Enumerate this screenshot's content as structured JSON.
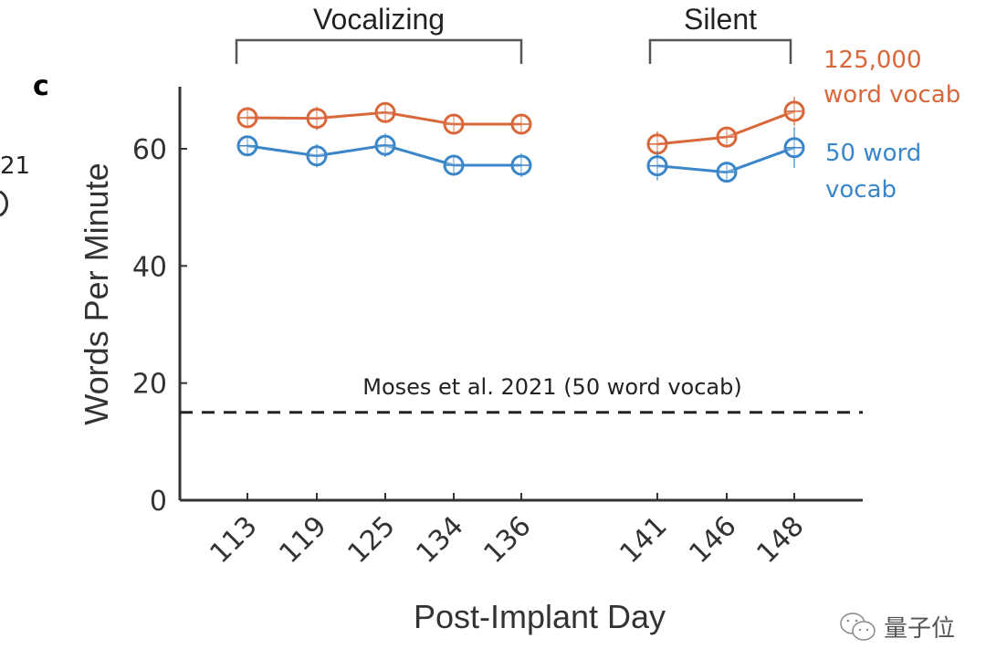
{
  "chart_data": {
    "type": "line",
    "panel_label": "c",
    "title": "",
    "xlabel": "Post-Implant Day",
    "ylabel": "Words Per Minute",
    "ylim": [
      0,
      70
    ],
    "yticks": [
      0,
      20,
      40,
      60
    ],
    "categories": [
      "113",
      "119",
      "125",
      "134",
      "136",
      "141",
      "146",
      "148"
    ],
    "groups": [
      {
        "label": "Vocalizing",
        "categories": [
          "113",
          "119",
          "125",
          "134",
          "136"
        ]
      },
      {
        "label": "Silent",
        "categories": [
          "141",
          "146",
          "148"
        ]
      }
    ],
    "series": [
      {
        "name": "125,000 word vocab",
        "legend_lines": [
          "125,000",
          "word vocab"
        ],
        "color": "#d9673a",
        "values": [
          65.3,
          65.2,
          66.2,
          64.2,
          64.2,
          60.8,
          62.0,
          66.4
        ],
        "errors": [
          1.5,
          2.0,
          1.8,
          1.6,
          1.4,
          2.2,
          1.8,
          2.5
        ]
      },
      {
        "name": "50 word vocab",
        "legend_lines": [
          "50 word",
          "vocab"
        ],
        "color": "#3a86c8",
        "values": [
          60.5,
          58.8,
          60.6,
          57.2,
          57.2,
          57.1,
          56.0,
          60.2
        ],
        "errors": [
          1.5,
          2.0,
          2.0,
          1.5,
          2.0,
          2.5,
          1.5,
          3.5
        ]
      }
    ],
    "reference_line": {
      "label": "Moses et al. 2021 (50 word vocab)",
      "value": 15,
      "style": "dashed"
    },
    "grid": false,
    "legend_placement": "right"
  },
  "fragments": {
    "left_text": "21"
  },
  "watermark": {
    "text": "量子位",
    "icon": "wechat-icon"
  }
}
